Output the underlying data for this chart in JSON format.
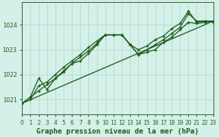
{
  "bg_color": "#d4f0e8",
  "grid_color": "#aad4c8",
  "line_color": "#1a5c1a",
  "title": "Graphe pression niveau de la mer (hPa)",
  "xlim": [
    0,
    23
  ],
  "ylim": [
    1020.4,
    1024.9
  ],
  "yticks": [
    1021,
    1022,
    1023,
    1024
  ],
  "xticks": [
    0,
    1,
    2,
    3,
    4,
    5,
    6,
    7,
    8,
    9,
    10,
    11,
    12,
    13,
    14,
    15,
    16,
    17,
    18,
    19,
    20,
    21,
    22,
    23
  ],
  "series": [
    {
      "x": [
        0,
        1,
        2,
        3,
        4,
        5,
        6,
        7,
        8,
        9,
        10,
        11,
        12,
        13,
        14,
        15,
        16,
        17,
        18,
        19,
        20,
        21,
        22,
        23
      ],
      "y": [
        1020.85,
        1021.0,
        1021.55,
        1021.7,
        1022.0,
        1022.3,
        1022.55,
        1022.8,
        1023.1,
        1023.35,
        1023.6,
        1023.6,
        1023.6,
        1023.2,
        1022.8,
        1022.9,
        1023.0,
        1023.3,
        1023.5,
        1023.8,
        1024.1,
        1024.05,
        1024.1,
        1024.15
      ],
      "lw": 1.0,
      "marker": "+",
      "ms": 3.5,
      "mew": 1.0
    },
    {
      "x": [
        1,
        2,
        3,
        4,
        5,
        6,
        7,
        8,
        9,
        10,
        11,
        12,
        13,
        14,
        15,
        16,
        17,
        18,
        19,
        20,
        21,
        22,
        23
      ],
      "y": [
        1021.1,
        1021.35,
        1021.6,
        1021.85,
        1022.15,
        1022.45,
        1022.7,
        1022.95,
        1023.25,
        1023.6,
        1023.6,
        1023.6,
        1023.2,
        1022.8,
        1023.0,
        1023.2,
        1023.4,
        1023.65,
        1023.9,
        1024.45,
        1024.15,
        1024.15,
        1024.1
      ],
      "lw": 1.0,
      "marker": "+",
      "ms": 3.5,
      "mew": 1.0
    },
    {
      "x": [
        0,
        1,
        2,
        3,
        4,
        5,
        6,
        7,
        8,
        9,
        10,
        11,
        12,
        13,
        14,
        15,
        16,
        17,
        18,
        19,
        20,
        21,
        22,
        23
      ],
      "y": [
        1020.85,
        1021.1,
        1021.85,
        1021.4,
        1021.85,
        1022.1,
        1022.45,
        1022.55,
        1022.85,
        1023.2,
        1023.6,
        1023.6,
        1023.6,
        1023.2,
        1023.0,
        1023.15,
        1023.4,
        1023.55,
        1023.85,
        1024.05,
        1024.55,
        1024.1,
        1024.15,
        1024.15
      ],
      "lw": 1.0,
      "marker": "+",
      "ms": 3.5,
      "mew": 1.0
    },
    {
      "x": [
        0,
        23
      ],
      "y": [
        1020.85,
        1024.15
      ],
      "lw": 1.0,
      "marker": null,
      "ms": 0,
      "mew": 0
    }
  ],
  "title_fontsize": 7.5,
  "tick_fontsize": 6.0,
  "tick_color": "#1a5c1a",
  "axis_color": "#1a5c1a"
}
